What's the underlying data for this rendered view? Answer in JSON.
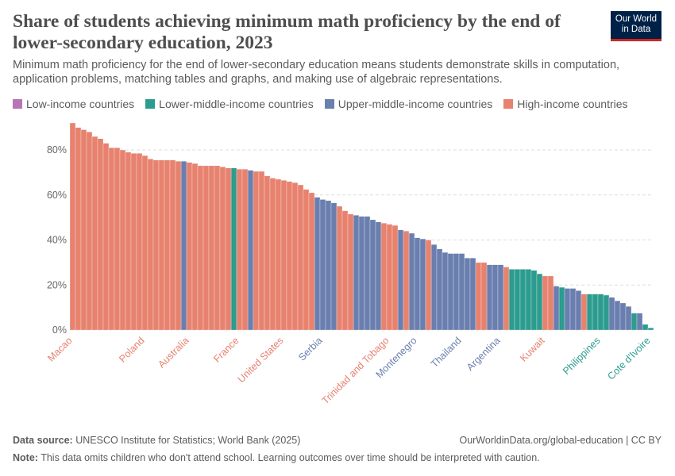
{
  "chart_data": {
    "type": "bar",
    "title": "Share of students achieving minimum math proficiency by the end of lower-secondary education, 2023",
    "subtitle": "Minimum math proficiency for the end of lower-secondary education means students demonstrate skills in computation, application problems, matching tables and graphs, and making use of algebraic representations.",
    "logo": "Our World in Data",
    "categories": [
      "Macao",
      null,
      null,
      null,
      null,
      null,
      null,
      null,
      null,
      null,
      null,
      null,
      null,
      "Poland",
      null,
      null,
      null,
      null,
      null,
      null,
      null,
      "Australia",
      null,
      null,
      null,
      null,
      null,
      null,
      null,
      null,
      "France",
      null,
      null,
      null,
      null,
      null,
      null,
      null,
      "United States",
      null,
      null,
      null,
      null,
      null,
      null,
      "Serbia",
      null,
      null,
      null,
      null,
      null,
      null,
      null,
      null,
      null,
      null,
      null,
      "Trinidad and Tobago",
      null,
      null,
      null,
      null,
      "Montenegro",
      null,
      null,
      null,
      null,
      null,
      null,
      null,
      "Thailand",
      null,
      null,
      null,
      null,
      null,
      null,
      "Argentina",
      null,
      null,
      null,
      null,
      null,
      null,
      null,
      "Kuwait",
      null,
      null,
      null,
      null,
      null,
      null,
      null,
      null,
      null,
      "Philippines",
      null,
      null,
      null,
      null,
      null,
      null,
      null,
      null,
      "Cote d'Ivoire"
    ],
    "series": [
      {
        "name": "Low-income countries",
        "color": "#b775b5",
        "values": [
          null,
          null,
          null,
          null,
          null,
          null,
          null,
          null,
          null,
          null,
          null,
          null,
          null,
          null,
          null,
          null,
          null,
          null,
          null,
          null,
          null,
          null,
          null,
          null,
          null,
          null,
          null,
          null,
          null,
          null,
          null,
          null,
          null,
          null,
          null,
          null,
          null,
          null,
          null,
          null,
          null,
          null,
          null,
          null,
          null,
          null,
          null,
          null,
          null,
          null,
          null,
          null,
          null,
          null,
          null,
          null,
          null,
          null,
          null,
          null,
          null,
          null,
          null,
          null,
          null,
          null,
          null,
          null,
          null,
          null,
          null,
          null,
          null,
          null,
          null,
          null,
          null,
          null,
          null,
          null,
          null,
          null,
          null,
          null,
          null,
          null,
          null,
          null,
          null,
          null,
          null,
          null,
          null,
          null,
          null,
          null,
          null,
          null,
          null,
          null,
          null,
          null,
          null,
          null,
          null
        ]
      },
      {
        "name": "Lower-middle-income countries",
        "color": "#2c9c8f",
        "values": [
          null,
          null,
          null,
          null,
          null,
          null,
          null,
          null,
          null,
          null,
          null,
          null,
          null,
          null,
          null,
          null,
          null,
          null,
          null,
          null,
          null,
          null,
          null,
          null,
          null,
          null,
          null,
          null,
          null,
          72,
          null,
          null,
          null,
          null,
          null,
          null,
          null,
          null,
          null,
          null,
          null,
          null,
          null,
          null,
          null,
          null,
          null,
          null,
          null,
          null,
          null,
          null,
          null,
          null,
          null,
          null,
          null,
          null,
          null,
          null,
          null,
          null,
          null,
          null,
          null,
          null,
          null,
          null,
          null,
          null,
          null,
          null,
          null,
          null,
          null,
          null,
          null,
          null,
          null,
          27,
          27,
          27,
          27,
          26.5,
          25,
          null,
          null,
          null,
          19,
          null,
          null,
          null,
          null,
          16,
          16,
          16,
          15.5,
          null,
          null,
          null,
          null,
          7.5,
          null,
          2.5,
          1
        ]
      },
      {
        "name": "Upper-middle-income countries",
        "color": "#6a7faf",
        "values": [
          null,
          null,
          null,
          null,
          null,
          null,
          null,
          null,
          null,
          null,
          null,
          null,
          null,
          null,
          null,
          null,
          null,
          null,
          null,
          null,
          75,
          null,
          null,
          null,
          null,
          null,
          null,
          null,
          null,
          null,
          null,
          null,
          71,
          null,
          null,
          null,
          null,
          null,
          null,
          null,
          null,
          null,
          null,
          null,
          59,
          58,
          57.5,
          56.5,
          null,
          null,
          null,
          51,
          50.5,
          50.5,
          49,
          48,
          null,
          null,
          null,
          44.5,
          null,
          43,
          41,
          40.5,
          null,
          38,
          36,
          34.5,
          34,
          34,
          34,
          32,
          32,
          null,
          null,
          29,
          29,
          29,
          null,
          null,
          null,
          null,
          null,
          null,
          null,
          null,
          null,
          19.5,
          null,
          18.5,
          18.5,
          17.5,
          null,
          null,
          null,
          null,
          null,
          14.5,
          13,
          12,
          10.5,
          null,
          7.5,
          null,
          null
        ]
      },
      {
        "name": "High-income countries",
        "color": "#e7826f",
        "values": [
          92,
          90,
          89,
          88,
          86,
          85,
          83,
          81,
          81,
          80,
          79,
          78.5,
          78.5,
          77.5,
          76,
          75.5,
          75.5,
          75.5,
          75.5,
          75,
          null,
          74.5,
          74,
          73,
          73,
          73,
          73,
          72.5,
          72,
          null,
          71.5,
          71.5,
          null,
          70.5,
          70.5,
          68.5,
          67.5,
          67,
          66.5,
          66,
          65.5,
          64.5,
          62.5,
          61,
          null,
          null,
          null,
          null,
          55,
          53,
          51.5,
          null,
          null,
          null,
          null,
          null,
          47.5,
          47,
          46.5,
          null,
          44,
          null,
          null,
          null,
          40,
          null,
          null,
          null,
          null,
          null,
          null,
          null,
          null,
          30,
          30,
          null,
          null,
          null,
          28,
          null,
          null,
          null,
          null,
          null,
          null,
          24,
          24,
          null,
          null,
          null,
          null,
          null,
          16,
          null,
          null,
          null,
          null,
          null,
          null,
          null,
          null,
          null,
          null,
          null,
          null
        ]
      }
    ],
    "ylim": [
      0,
      92
    ],
    "yticks": [
      {
        "value": 0,
        "label": "0%"
      },
      {
        "value": 20,
        "label": "20%"
      },
      {
        "value": 40,
        "label": "40%"
      },
      {
        "value": 60,
        "label": "60%"
      },
      {
        "value": 80,
        "label": "80%"
      }
    ],
    "grid": true,
    "source_label": "Data source:",
    "source": "UNESCO Institute for Statistics; World Bank (2025)",
    "url": "OurWorldinData.org/global-education | CC BY",
    "note_label": "Note:",
    "note": "This data omits children who don't attend school. Learning outcomes over time should be interpreted with caution."
  }
}
